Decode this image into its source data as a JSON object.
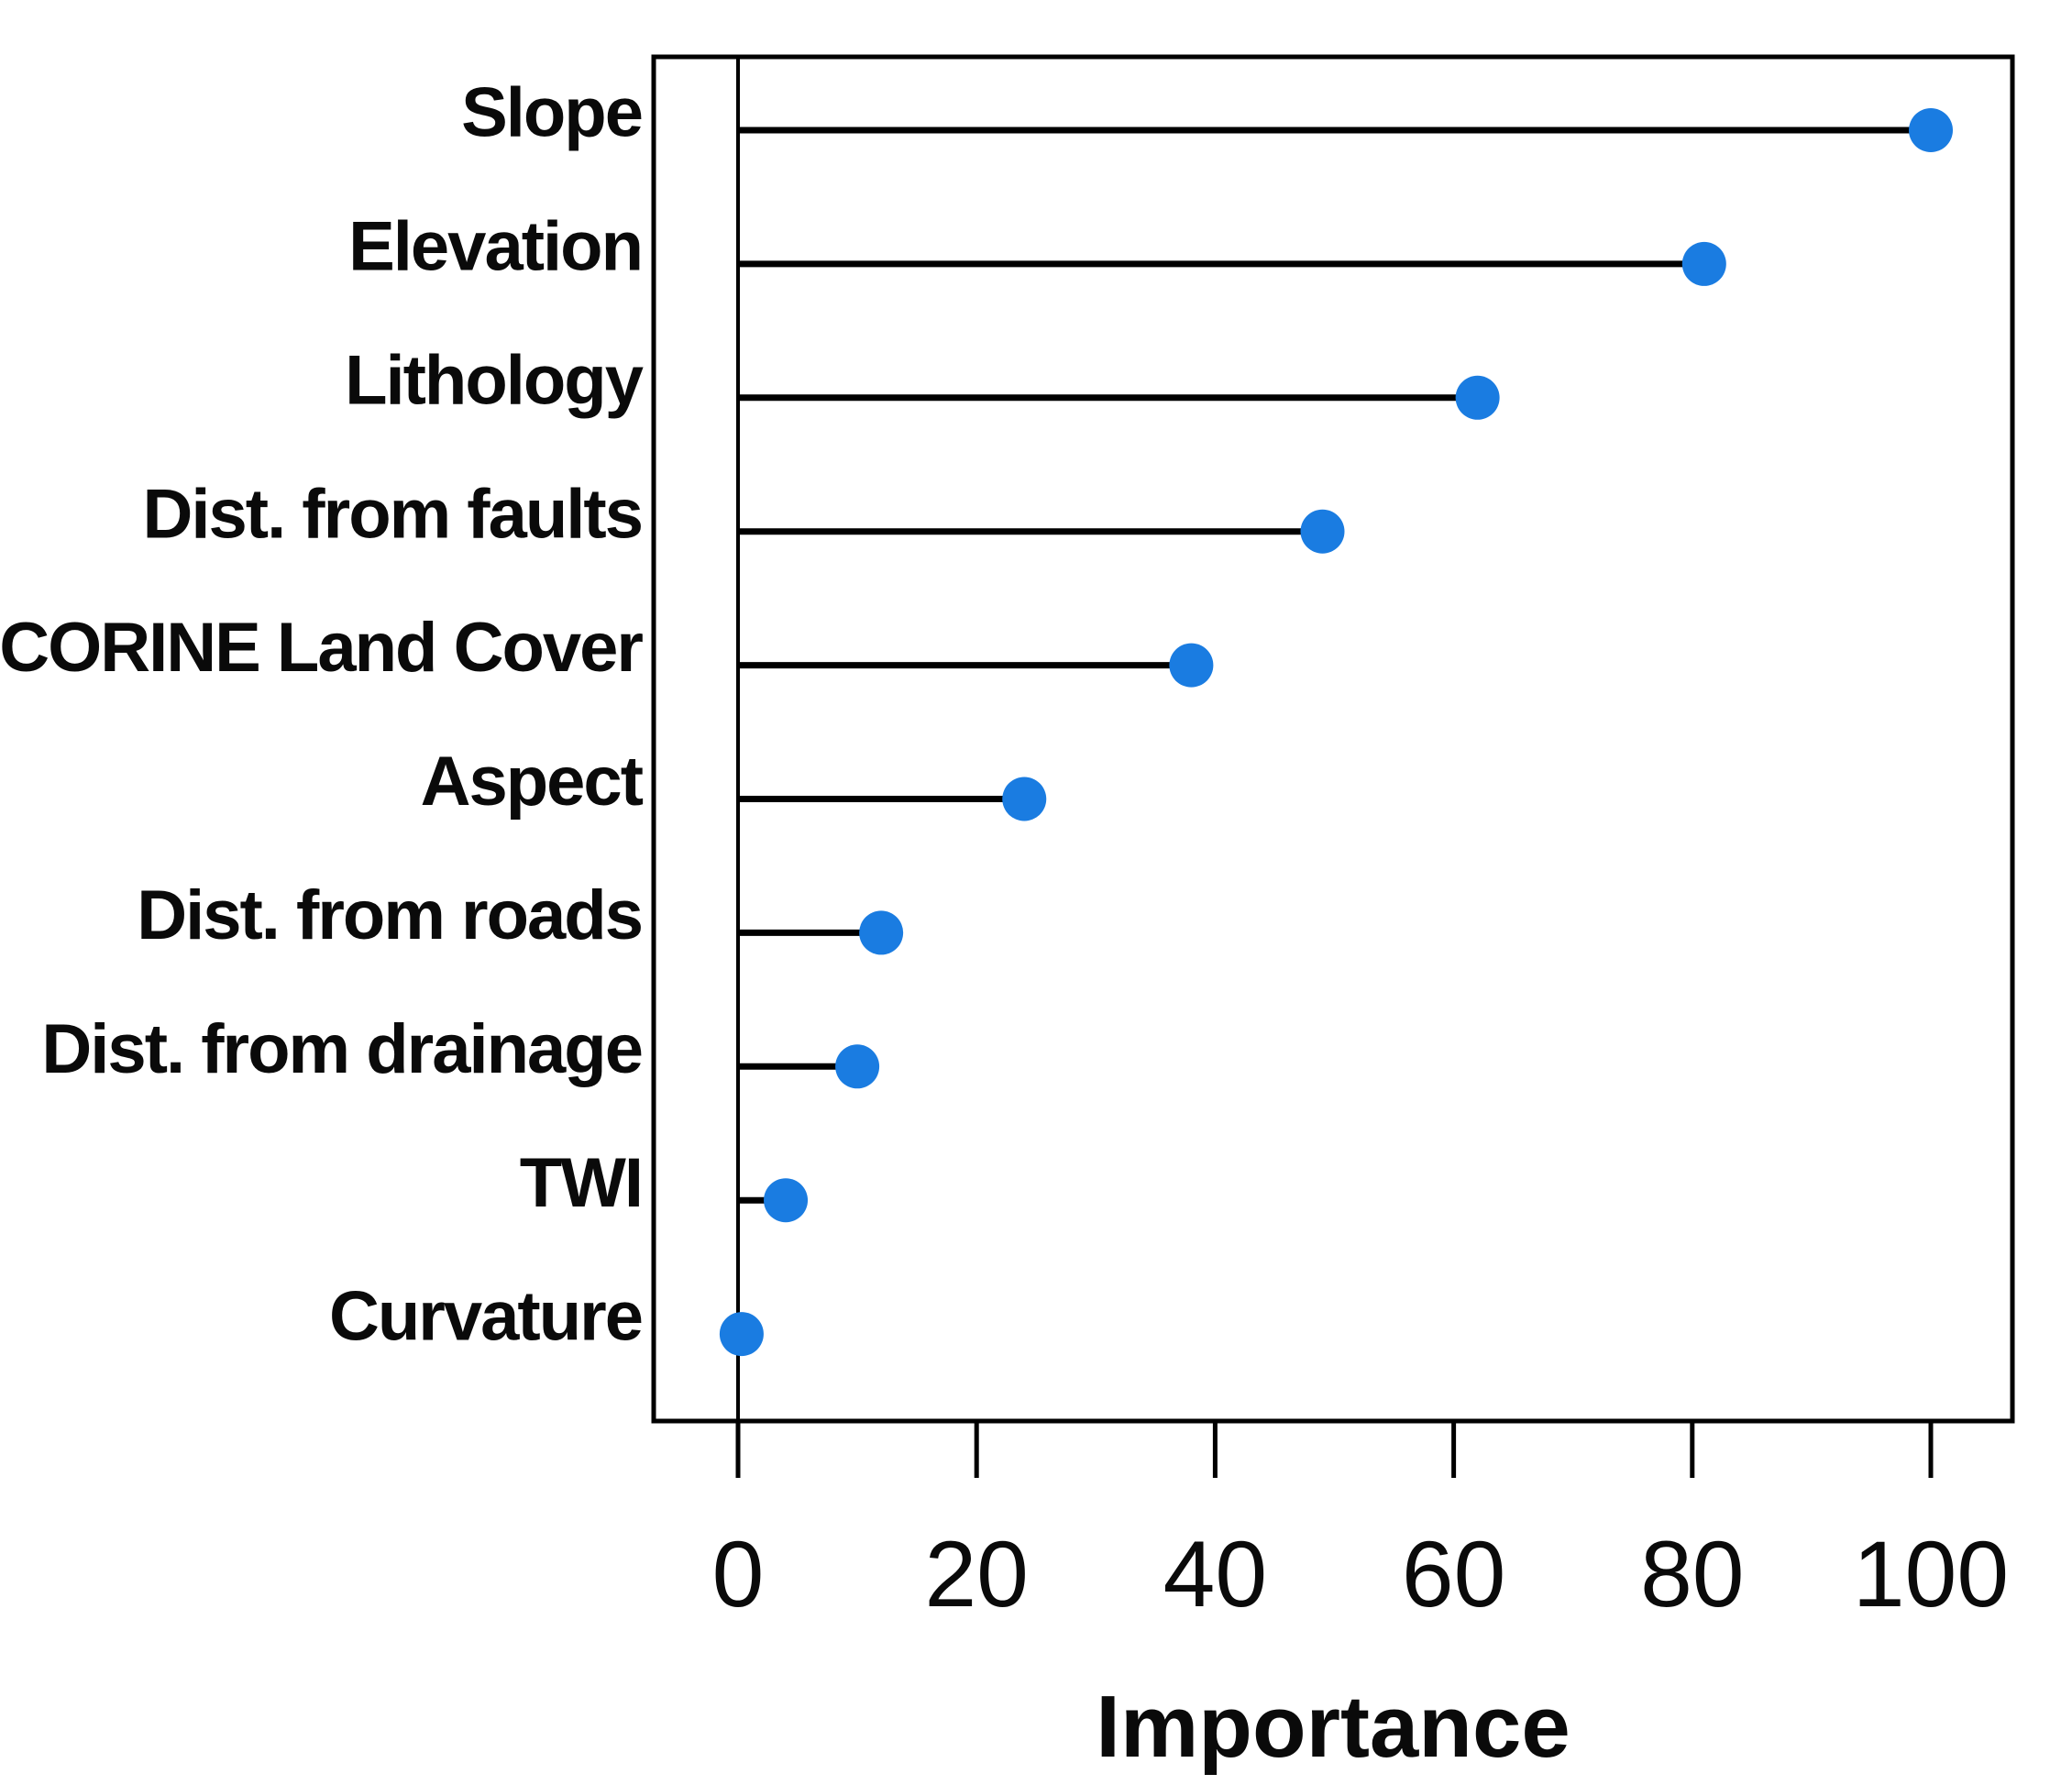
{
  "chart_data": {
    "type": "scatter",
    "style": "lollipop-dot-plot",
    "title": "",
    "xlabel": "Importance",
    "ylabel": "",
    "categories": [
      "Slope",
      "Elevation",
      "Lithology",
      "Dist. from faults",
      "CORINE Land Cover",
      "Aspect",
      "Dist. from roads",
      "Dist. from drainage",
      "TWI",
      "Curvature"
    ],
    "values": [
      100,
      81,
      62,
      49,
      38,
      24,
      12,
      10,
      4,
      0.3
    ],
    "xticks": [
      0,
      20,
      40,
      60,
      80,
      100
    ],
    "xlim": [
      -7,
      107
    ],
    "grid": false,
    "legend": null,
    "colors": {
      "point": "#1a7ce1",
      "stem_line": "#000000",
      "axis": "#000000",
      "background": "#ffffff"
    }
  }
}
